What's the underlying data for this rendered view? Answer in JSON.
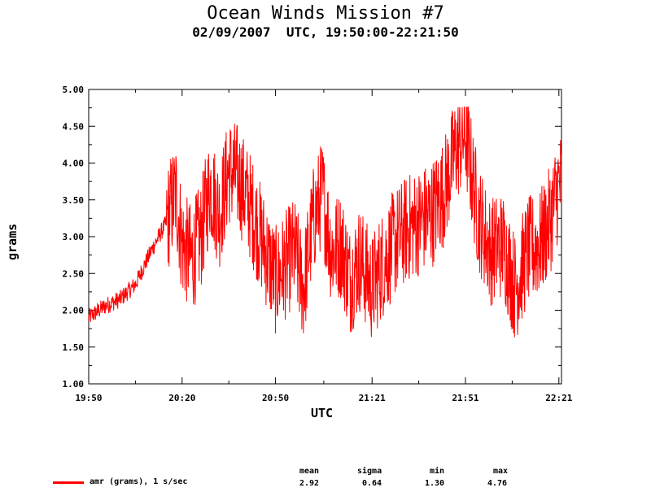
{
  "chart_data": {
    "type": "line",
    "title": "Ocean Winds Mission #7",
    "subtitle": "02/09/2007  UTC, 19:50:00-22:21:50",
    "xlabel": "UTC",
    "ylabel": "grams",
    "x_ticks": [
      "19:50",
      "20:20",
      "20:50",
      "21:21",
      "21:51",
      "22:21"
    ],
    "y_ticks": [
      "1.00",
      "1.50",
      "2.00",
      "2.50",
      "3.00",
      "3.50",
      "4.00",
      "4.50",
      "5.00"
    ],
    "ylim": [
      1.0,
      5.0
    ],
    "xlim": [
      "19:50:00",
      "22:21:50"
    ],
    "grid": false,
    "series": [
      {
        "name": "amr (grams), 1 s/sec",
        "color": "#ff0000",
        "x": [
          "19:50",
          "19:55",
          "20:00",
          "20:05",
          "20:10",
          "20:15",
          "20:18",
          "20:20",
          "20:23",
          "20:26",
          "20:29",
          "20:32",
          "20:35",
          "20:38",
          "20:42",
          "20:46",
          "20:50",
          "20:53",
          "20:56",
          "20:59",
          "21:02",
          "21:05",
          "21:08",
          "21:11",
          "21:14",
          "21:17",
          "21:21",
          "21:24",
          "21:28",
          "21:32",
          "21:36",
          "21:40",
          "21:44",
          "21:48",
          "21:51",
          "21:55",
          "21:59",
          "22:03",
          "22:07",
          "22:11",
          "22:15",
          "22:18",
          "22:21"
        ],
        "values": [
          1.9,
          2.05,
          2.15,
          2.35,
          2.8,
          3.2,
          3.6,
          2.9,
          2.7,
          3.0,
          3.7,
          3.3,
          3.9,
          3.8,
          3.4,
          2.9,
          2.4,
          2.6,
          2.8,
          2.3,
          3.2,
          3.6,
          2.8,
          2.9,
          2.4,
          2.7,
          2.3,
          2.6,
          2.9,
          3.1,
          3.2,
          3.3,
          3.6,
          4.2,
          4.4,
          3.3,
          2.8,
          2.9,
          2.3,
          2.8,
          2.9,
          3.2,
          3.7
        ]
      }
    ],
    "stats": {
      "headers": [
        "mean",
        "sigma",
        "min",
        "max"
      ],
      "values": [
        "2.92",
        "0.64",
        "1.30",
        "4.76"
      ]
    }
  }
}
